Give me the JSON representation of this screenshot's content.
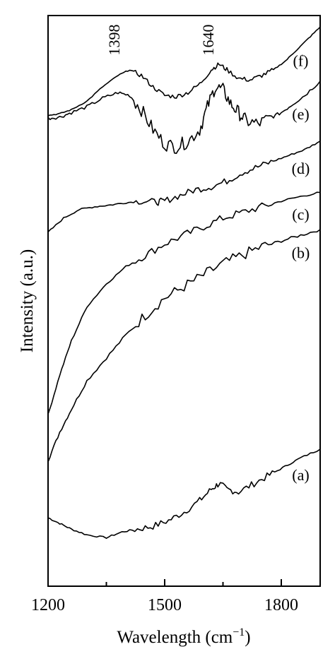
{
  "chart_data": {
    "type": "line",
    "xlabel": "Wavelength (cm",
    "xlabel_sup": "−1",
    "xlabel_close": ")",
    "ylabel": "Intensity (a.u.)",
    "xlim": [
      1200,
      1900
    ],
    "x_ticks": [
      1200,
      1500,
      1800
    ],
    "x_tick_labels": [
      "1200",
      "1500",
      "1800"
    ],
    "x_minor_ticks": [
      1350,
      1650
    ],
    "yticks_shown": false,
    "annotations": [
      {
        "text": "1398",
        "x": 1398,
        "y_rel": 0.93
      },
      {
        "text": "1640",
        "x": 1640,
        "y_rel": 0.93
      }
    ],
    "series": [
      {
        "name": "(a)",
        "x": [
          1200,
          1230,
          1260,
          1300,
          1350,
          1390,
          1430,
          1470,
          1510,
          1550,
          1590,
          1620,
          1640,
          1660,
          1690,
          1730,
          1770,
          1810,
          1850,
          1900
        ],
        "y": [
          0.12,
          0.11,
          0.1,
          0.09,
          0.085,
          0.095,
          0.1,
          0.105,
          0.115,
          0.13,
          0.15,
          0.17,
          0.18,
          0.17,
          0.165,
          0.18,
          0.195,
          0.21,
          0.225,
          0.24
        ]
      },
      {
        "name": "(b)",
        "x": [
          1200,
          1230,
          1260,
          1300,
          1350,
          1400,
          1450,
          1500,
          1550,
          1600,
          1650,
          1700,
          1750,
          1800,
          1850,
          1900
        ],
        "y": [
          0.22,
          0.27,
          0.31,
          0.36,
          0.4,
          0.44,
          0.475,
          0.505,
          0.525,
          0.545,
          0.565,
          0.58,
          0.595,
          0.605,
          0.615,
          0.625
        ]
      },
      {
        "name": "(c)",
        "x": [
          1200,
          1230,
          1260,
          1300,
          1350,
          1400,
          1450,
          1500,
          1550,
          1600,
          1650,
          1700,
          1750,
          1800,
          1850,
          1900
        ],
        "y": [
          0.3,
          0.37,
          0.43,
          0.49,
          0.53,
          0.56,
          0.58,
          0.6,
          0.615,
          0.63,
          0.645,
          0.655,
          0.665,
          0.675,
          0.683,
          0.69
        ]
      },
      {
        "name": "(d)",
        "x": [
          1200,
          1240,
          1280,
          1320,
          1360,
          1400,
          1440,
          1480,
          1500,
          1540,
          1580,
          1620,
          1660,
          1700,
          1740,
          1780,
          1820,
          1860,
          1900
        ],
        "y": [
          0.62,
          0.645,
          0.66,
          0.665,
          0.668,
          0.672,
          0.675,
          0.673,
          0.675,
          0.685,
          0.695,
          0.7,
          0.71,
          0.725,
          0.735,
          0.745,
          0.755,
          0.765,
          0.78
        ]
      },
      {
        "name": "(e)",
        "x": [
          1200,
          1230,
          1260,
          1300,
          1340,
          1380,
          1410,
          1440,
          1470,
          1500,
          1530,
          1560,
          1590,
          1610,
          1630,
          1650,
          1670,
          1690,
          1710,
          1740,
          1770,
          1800,
          1830,
          1860,
          1900
        ],
        "y": [
          0.82,
          0.822,
          0.83,
          0.84,
          0.855,
          0.865,
          0.86,
          0.835,
          0.8,
          0.775,
          0.77,
          0.78,
          0.8,
          0.84,
          0.875,
          0.87,
          0.845,
          0.83,
          0.815,
          0.81,
          0.82,
          0.83,
          0.845,
          0.86,
          0.885
        ]
      },
      {
        "name": "(f)",
        "x": [
          1200,
          1230,
          1260,
          1300,
          1340,
          1380,
          1410,
          1440,
          1470,
          1500,
          1530,
          1560,
          1590,
          1620,
          1640,
          1660,
          1690,
          1720,
          1750,
          1780,
          1810,
          1840,
          1870,
          1900
        ],
        "y": [
          0.825,
          0.828,
          0.835,
          0.85,
          0.875,
          0.895,
          0.905,
          0.895,
          0.875,
          0.86,
          0.858,
          0.865,
          0.88,
          0.905,
          0.915,
          0.905,
          0.89,
          0.887,
          0.895,
          0.905,
          0.92,
          0.94,
          0.96,
          0.98
        ]
      }
    ]
  }
}
